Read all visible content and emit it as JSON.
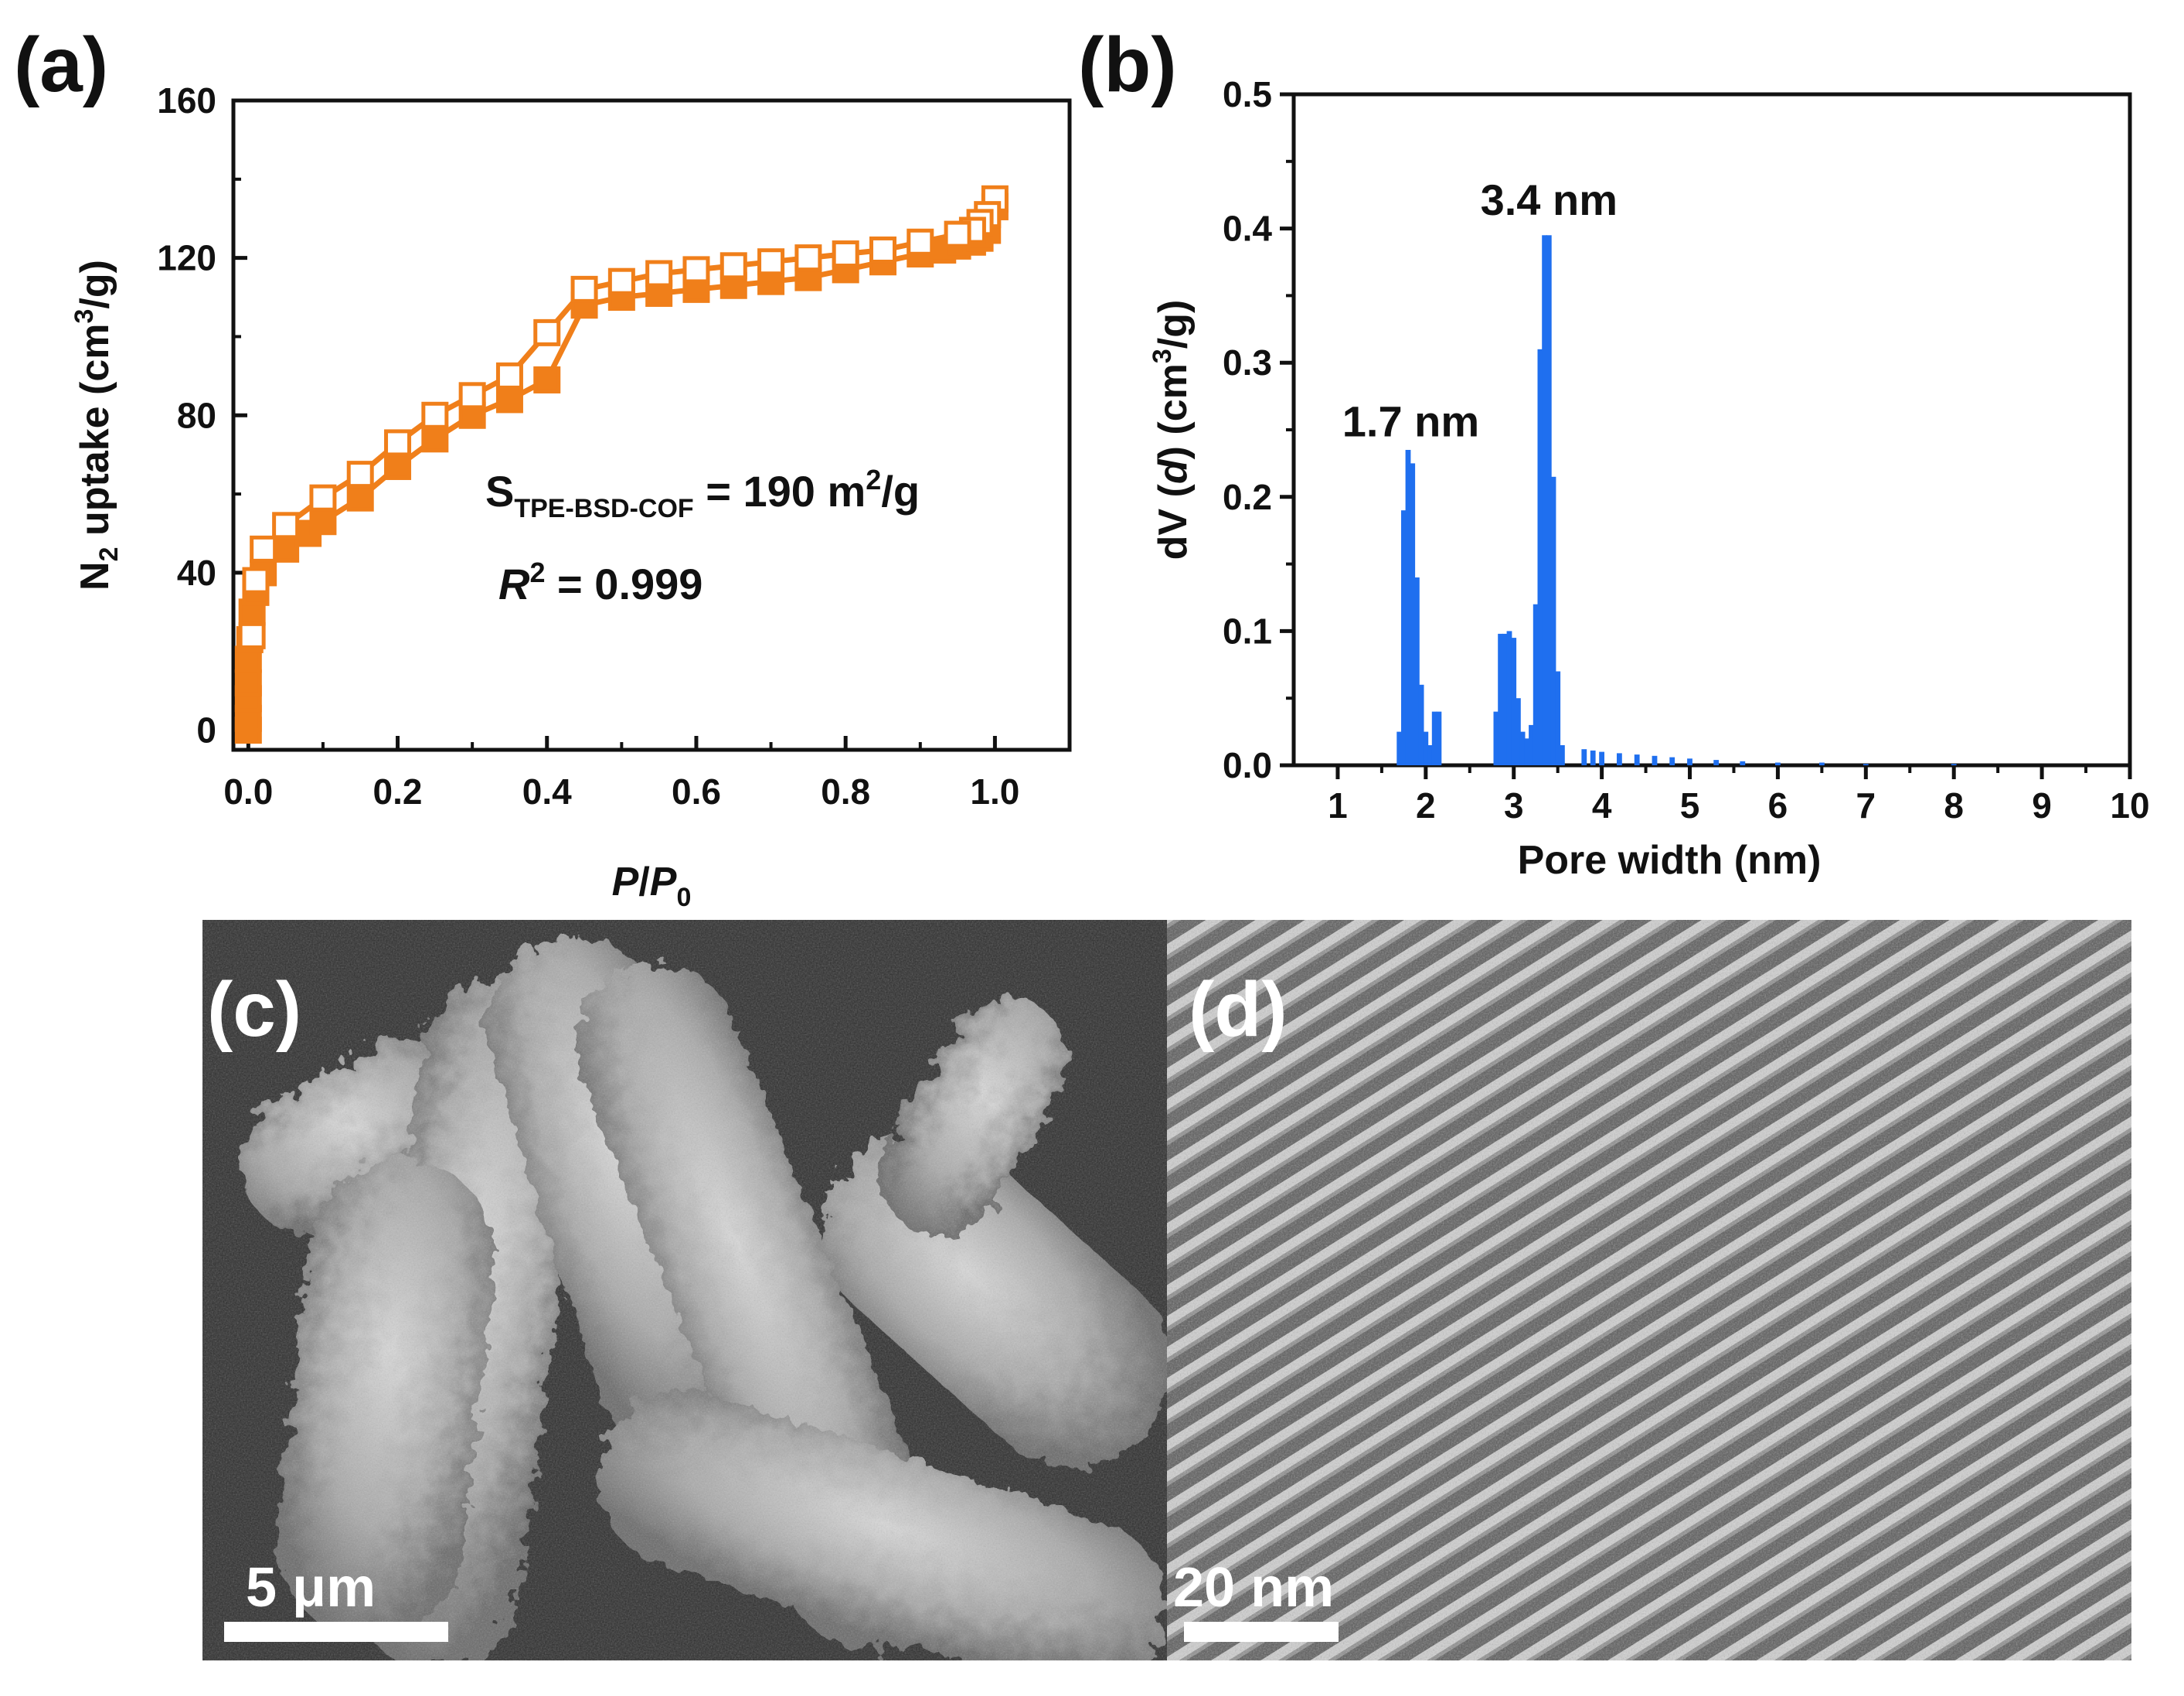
{
  "panels": {
    "a": "(a)",
    "b": "(b)",
    "c": "(c)",
    "d": "(d)"
  },
  "micrographs": {
    "c": {
      "scale_bar": "5 μm",
      "kind": "SEM"
    },
    "d": {
      "scale_bar": "20 nm",
      "kind": "HRTEM"
    }
  },
  "colors": {
    "isotherm": "#f07f1a",
    "pore_bars": "#1f6fef",
    "axis": "#111111"
  },
  "chart_data": [
    {
      "id": "a",
      "type": "line",
      "xlabel_main": "P",
      "xlabel_sep": "/",
      "xlabel_sub_base": "P",
      "xlabel_sub": "0",
      "ylabel_pre": "N",
      "ylabel_sub": "2",
      "ylabel_mid": " uptake (cm",
      "ylabel_sup": "3",
      "ylabel_post": "/g)",
      "xlim": [
        -0.02,
        1.1
      ],
      "ylim": [
        -5,
        160
      ],
      "xticks": [
        0.0,
        0.2,
        0.4,
        0.6,
        0.8,
        1.0
      ],
      "xtick_labels": [
        "0.0",
        "0.2",
        "0.4",
        "0.6",
        "0.8",
        "1.0"
      ],
      "yticks": [
        0,
        40,
        80,
        120,
        160
      ],
      "ytick_labels": [
        "0",
        "40",
        "80",
        "120",
        "160"
      ],
      "annotation_s": {
        "base": "S",
        "sub": "TPE-BSD-COF",
        "rest": " = 190 m",
        "sup": "2",
        "tail": "/g"
      },
      "annotation_r": {
        "base": "R",
        "sup": "2",
        "rest": " = 0.999"
      },
      "series": [
        {
          "marker": "filled-square",
          "x": [
            0.0,
            0.0,
            0.0,
            0.0,
            0.0,
            0.002,
            0.005,
            0.01,
            0.02,
            0.05,
            0.08,
            0.1,
            0.15,
            0.2,
            0.25,
            0.3,
            0.35,
            0.4,
            0.45,
            0.5,
            0.55,
            0.6,
            0.65,
            0.7,
            0.75,
            0.8,
            0.85,
            0.9,
            0.93,
            0.95,
            0.97,
            0.98,
            0.99,
            1.0
          ],
          "y": [
            0,
            3,
            8,
            12,
            18,
            23,
            30,
            35,
            40,
            46,
            50,
            53,
            59,
            67,
            74,
            80,
            84,
            89,
            108,
            110,
            111,
            112,
            113,
            114,
            115,
            117,
            119,
            121,
            122,
            123,
            124,
            125,
            127,
            133
          ]
        },
        {
          "marker": "open-square",
          "x": [
            1.0,
            0.99,
            0.98,
            0.97,
            0.95,
            0.9,
            0.85,
            0.8,
            0.75,
            0.7,
            0.65,
            0.6,
            0.55,
            0.5,
            0.45,
            0.4,
            0.35,
            0.3,
            0.25,
            0.2,
            0.15,
            0.1,
            0.05,
            0.02,
            0.01,
            0.005
          ],
          "y": [
            135,
            131,
            129,
            127,
            126,
            124,
            122,
            121,
            120,
            119,
            118,
            117,
            116,
            114,
            112,
            101,
            90,
            85,
            80,
            73,
            65,
            59,
            52,
            46,
            38,
            24
          ]
        }
      ]
    },
    {
      "id": "b",
      "type": "bar",
      "xlabel": "Pore width (nm)",
      "ylabel_pre": "dV (",
      "ylabel_italic": "d",
      "ylabel_mid": ") (cm",
      "ylabel_sup": "3",
      "ylabel_post": "/g)",
      "xlim": [
        0.5,
        10
      ],
      "ylim": [
        0,
        0.5
      ],
      "xticks": [
        1,
        2,
        3,
        4,
        5,
        6,
        7,
        8,
        9,
        10
      ],
      "xtick_labels": [
        "1",
        "2",
        "3",
        "4",
        "5",
        "6",
        "7",
        "8",
        "9",
        "10"
      ],
      "yticks": [
        0.0,
        0.1,
        0.2,
        0.3,
        0.4,
        0.5
      ],
      "ytick_labels": [
        "0.0",
        "0.1",
        "0.2",
        "0.3",
        "0.4",
        "0.5"
      ],
      "peak_labels": [
        {
          "text": "1.7 nm",
          "x": 1.83,
          "y": 0.245
        },
        {
          "text": "3.4 nm",
          "x": 3.4,
          "y": 0.41
        }
      ],
      "x": [
        1.7,
        1.75,
        1.8,
        1.85,
        1.9,
        1.95,
        2.0,
        2.05,
        2.1,
        2.15,
        2.8,
        2.85,
        2.9,
        2.95,
        3.0,
        3.05,
        3.1,
        3.15,
        3.2,
        3.25,
        3.3,
        3.35,
        3.4,
        3.45,
        3.5,
        3.55,
        3.8,
        3.9,
        4.0,
        4.2,
        4.4,
        4.6,
        4.8,
        5.0,
        5.3,
        5.6,
        6.0,
        6.5,
        7.0,
        8.0
      ],
      "values": [
        0.025,
        0.19,
        0.235,
        0.225,
        0.14,
        0.06,
        0.025,
        0.015,
        0.04,
        0.04,
        0.04,
        0.098,
        0.098,
        0.1,
        0.095,
        0.05,
        0.025,
        0.02,
        0.03,
        0.12,
        0.31,
        0.395,
        0.395,
        0.215,
        0.07,
        0.015,
        0.012,
        0.011,
        0.01,
        0.009,
        0.008,
        0.007,
        0.006,
        0.005,
        0.004,
        0.003,
        0.002,
        0.002,
        0.001,
        0.001
      ],
      "bar_width": 0.06
    }
  ]
}
